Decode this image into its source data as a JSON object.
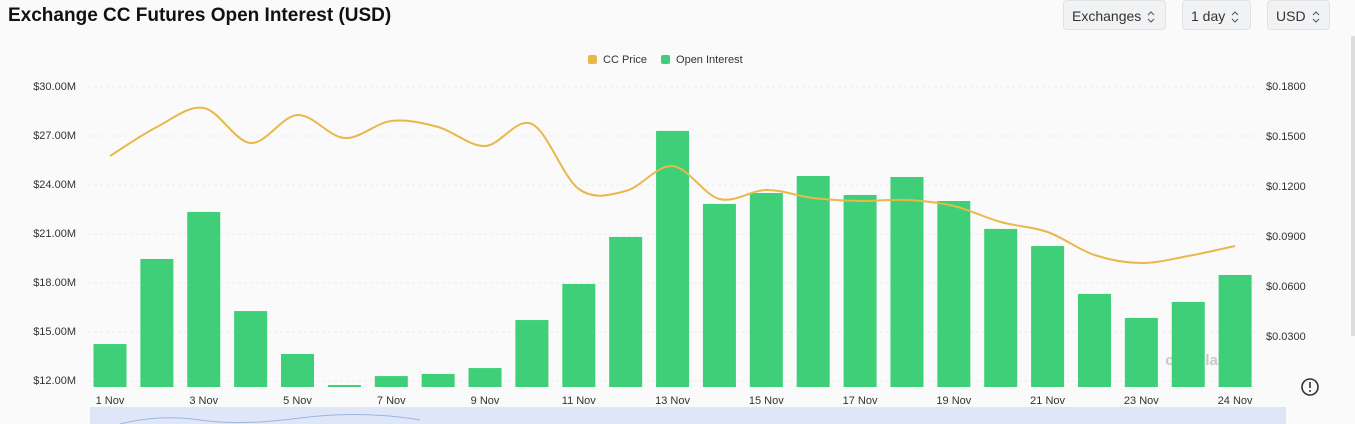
{
  "chart_data": {
    "type": "bar",
    "title": "Exchange CC Futures Open Interest (USD)",
    "controls": [
      "Exchanges",
      "1 day",
      "USD"
    ],
    "watermark": "coinglass",
    "categories": [
      "1 Nov",
      null,
      "3 Nov",
      null,
      "5 Nov",
      null,
      "7 Nov",
      null,
      "9 Nov",
      null,
      "11 Nov",
      null,
      "13 Nov",
      null,
      "15 Nov",
      null,
      "17 Nov",
      null,
      "19 Nov",
      null,
      "21 Nov",
      null,
      "23 Nov",
      null,
      "24 Nov"
    ],
    "series": [
      {
        "name": "CC Price",
        "type": "line",
        "axis": "y2",
        "color": "#e8b84a",
        "values": [
          0.1386,
          0.156,
          0.1674,
          0.1464,
          0.1632,
          0.1494,
          0.1596,
          0.156,
          0.1446,
          0.1578,
          0.1188,
          0.1176,
          0.1326,
          0.1128,
          0.1182,
          0.1134,
          0.1116,
          0.1122,
          0.1086,
          0.099,
          0.093,
          0.0792,
          0.0744,
          0.0786,
          0.0846
        ]
      },
      {
        "name": "Open Interest",
        "type": "bar",
        "color": "#3ecf78",
        "values": [
          14.26,
          19.47,
          22.35,
          16.28,
          13.65,
          11.75,
          12.3,
          12.43,
          12.79,
          15.73,
          17.94,
          20.82,
          27.31,
          22.84,
          23.51,
          24.55,
          23.39,
          24.49,
          23.02,
          21.31,
          20.26,
          17.33,
          15.86,
          16.84,
          18.49
        ]
      }
    ],
    "legend": "top",
    "grid": true,
    "ylim": [
      11.63,
      30
    ],
    "yticks": [
      {
        "value": 12,
        "label": "$12.00M"
      },
      {
        "value": 15,
        "label": "$15.00M"
      },
      {
        "value": 18,
        "label": "$18.00M"
      },
      {
        "value": 21,
        "label": "$21.00M"
      },
      {
        "value": 24,
        "label": "$24.00M"
      },
      {
        "value": 27,
        "label": "$27.00M"
      },
      {
        "value": 30,
        "label": "$30.00M"
      }
    ],
    "y2lim": [
      0,
      0.18
    ],
    "y2ticks": [
      {
        "value": 0.03,
        "label": "$0.0300"
      },
      {
        "value": 0.06,
        "label": "$0.0600"
      },
      {
        "value": 0.09,
        "label": "$0.0900"
      },
      {
        "value": 0.12,
        "label": "$0.1200"
      },
      {
        "value": 0.15,
        "label": "$0.1500"
      },
      {
        "value": 0.18,
        "label": "$0.1800"
      }
    ]
  }
}
